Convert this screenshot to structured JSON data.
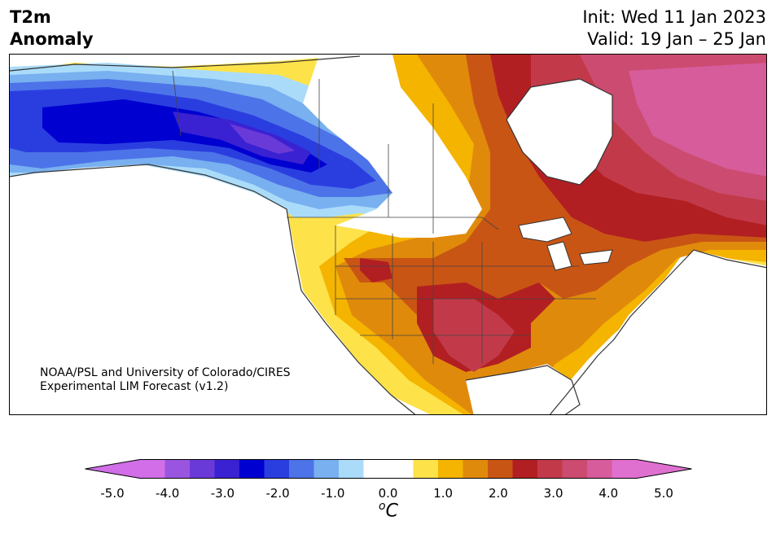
{
  "header": {
    "variable": "T2m",
    "subtitle": "Anomaly",
    "init": "Init: Wed 11 Jan 2023",
    "valid": "Valid: 19 Jan – 25 Jan"
  },
  "credit": {
    "line1": "NOAA/PSL and University of Colorado/CIRES",
    "line2": "Experimental LIM Forecast (v1.2)"
  },
  "colorbar": {
    "unit_sup": "o",
    "unit": "C",
    "ticks": [
      "-5.0",
      "-4.0",
      "-3.0",
      "-2.0",
      "-1.0",
      "0.0",
      "1.0",
      "2.0",
      "3.0",
      "4.0",
      "5.0"
    ],
    "colors": [
      "#d16ee8",
      "#9a55e0",
      "#6a3ad8",
      "#3a22d2",
      "#0000d0",
      "#2a3ee0",
      "#4d73e8",
      "#78b0f0",
      "#aadcfa",
      "#ffffff",
      "#ffffff",
      "#fde24a",
      "#f4b400",
      "#e08a0c",
      "#c95514",
      "#b21f22",
      "#c23a4a",
      "#cc4b70",
      "#d65c9c",
      "#e070cf"
    ],
    "under_color": "#d16ee8",
    "over_color": "#e070cf"
  },
  "map": {
    "ocean_color": "#ffffff",
    "coast_color": "#333333"
  }
}
